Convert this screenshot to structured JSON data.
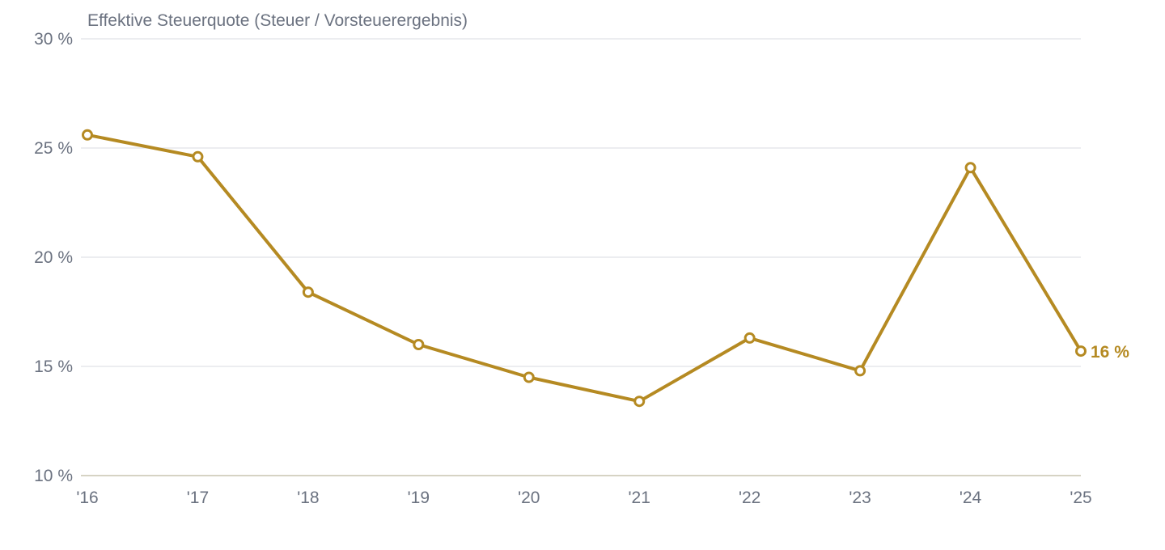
{
  "chart_data": {
    "type": "line",
    "ylabel": "Effektive Steuerquote (Steuer / Vorsteuerergebnis)",
    "categories": [
      "'16",
      "'17",
      "'18",
      "'19",
      "'20",
      "'21",
      "'22",
      "'23",
      "'24",
      "'25"
    ],
    "series": [
      {
        "values": [
          25.6,
          24.6,
          18.4,
          16.0,
          14.5,
          13.4,
          16.3,
          14.8,
          24.1,
          15.7
        ],
        "color": "#b58a22",
        "end_label": "16 %"
      }
    ],
    "ylim": [
      10,
      30
    ],
    "yticks": [
      10,
      15,
      20,
      25,
      30
    ],
    "ytick_labels": [
      "10 %",
      "15 %",
      "20 %",
      "25 %",
      "30 %"
    ],
    "grid": true,
    "colors": {
      "line": "#b58a22",
      "grid": "#e5e7eb",
      "axis": "#d6d3c4",
      "text": "#6b7280"
    }
  }
}
